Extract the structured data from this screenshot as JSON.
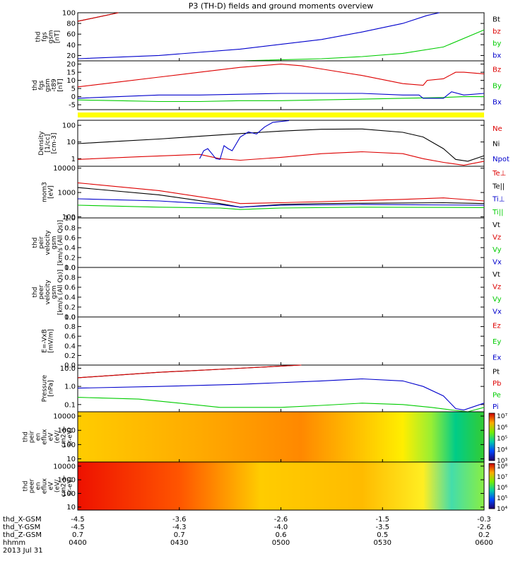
{
  "title": "P3 (TH-D) fields and ground moments overview",
  "colors": {
    "black": "#000000",
    "red": "#dd0000",
    "green": "#00cc00",
    "blue": "#0000cc",
    "yellow": "#ffff00"
  },
  "chart_data": [
    {
      "type": "line",
      "id": "fgs",
      "ylabel": [
        "thd",
        "fgs",
        "gsm",
        "[nT]"
      ],
      "ylim": [
        10,
        100
      ],
      "yticks": [
        {
          "v": 100,
          "t": "100"
        },
        {
          "v": 80,
          "t": "80"
        },
        {
          "v": 60,
          "t": "60"
        },
        {
          "v": 40,
          "t": "40"
        },
        {
          "v": 20,
          "t": "20"
        }
      ],
      "legend": [
        {
          "text": "Bt",
          "color": "black"
        },
        {
          "text": "bz",
          "color": "red"
        },
        {
          "text": "by",
          "color": "green"
        },
        {
          "text": "bx",
          "color": "blue"
        }
      ],
      "series": [
        {
          "color": "black",
          "x": [
            0,
            10
          ],
          "y": [
            84,
            100
          ]
        },
        {
          "color": "red",
          "x": [
            0,
            10
          ],
          "y": [
            84,
            100
          ]
        },
        {
          "color": "green",
          "x": [
            0,
            20,
            40,
            60,
            70,
            80,
            90,
            100
          ],
          "y": [
            4,
            6,
            9,
            14,
            18,
            24,
            36,
            68
          ]
        },
        {
          "color": "blue",
          "x": [
            0,
            20,
            40,
            60,
            70,
            80,
            86,
            89
          ],
          "y": [
            14,
            20,
            32,
            50,
            64,
            80,
            95,
            100
          ]
        }
      ]
    },
    {
      "type": "line",
      "id": "fgs_t89",
      "ylabel": [
        "thd",
        "fgs",
        "gsm",
        "-t89",
        "[nT]"
      ],
      "ylim": [
        -8,
        22
      ],
      "yticks": [
        {
          "v": 20,
          "t": "20"
        },
        {
          "v": 15,
          "t": "15"
        },
        {
          "v": 10,
          "t": "10"
        },
        {
          "v": 5,
          "t": "5"
        },
        {
          "v": 0,
          "t": "0"
        },
        {
          "v": -5,
          "t": "-5"
        }
      ],
      "legend": [
        {
          "text": "Bz",
          "color": "red"
        },
        {
          "text": "By",
          "color": "green"
        },
        {
          "text": "Bx",
          "color": "blue"
        }
      ],
      "series": [
        {
          "color": "red",
          "x": [
            0,
            10,
            20,
            30,
            40,
            50,
            55,
            60,
            70,
            80,
            85,
            86,
            90,
            93,
            95,
            100
          ],
          "y": [
            6,
            9,
            12,
            15,
            18,
            20,
            19,
            17,
            13,
            8,
            7,
            10,
            11,
            15,
            15,
            14
          ]
        },
        {
          "color": "green",
          "x": [
            0,
            10,
            20,
            30,
            40,
            50,
            60,
            70,
            80,
            90,
            95,
            100
          ],
          "y": [
            -2,
            -2.5,
            -3,
            -3,
            -2.5,
            -2.5,
            -2,
            -1.5,
            -1,
            -0.5,
            0,
            0
          ]
        },
        {
          "color": "blue",
          "x": [
            0,
            10,
            20,
            30,
            40,
            50,
            60,
            70,
            80,
            84,
            85,
            88,
            90,
            92,
            95,
            100
          ],
          "y": [
            -1,
            0,
            1,
            1,
            1.5,
            2,
            2,
            2,
            1,
            1,
            -1,
            -1,
            -1,
            3,
            1,
            2
          ]
        }
      ]
    },
    {
      "type": "log-line",
      "id": "density",
      "ylabel": [
        "Density",
        "[1/cc]",
        "[cm-3]"
      ],
      "ylim": [
        0.35,
        200
      ],
      "yticks": [
        {
          "v": 100,
          "t": "100"
        },
        {
          "v": 10,
          "t": "10"
        },
        {
          "v": 1,
          "t": "1"
        }
      ],
      "legend": [
        {
          "text": "Ne",
          "color": "red"
        },
        {
          "text": "Ni",
          "color": "black"
        },
        {
          "text": "Npot",
          "color": "blue"
        }
      ],
      "series": [
        {
          "color": "black",
          "x": [
            0,
            10,
            20,
            30,
            40,
            50,
            60,
            70,
            80,
            85,
            90,
            93,
            96,
            100
          ],
          "y": [
            8,
            11,
            15,
            22,
            32,
            45,
            58,
            60,
            38,
            20,
            4,
            0.9,
            0.7,
            1.5
          ]
        },
        {
          "color": "red",
          "x": [
            0,
            15,
            30,
            35,
            40,
            50,
            60,
            70,
            80,
            85,
            90,
            95,
            100
          ],
          "y": [
            0.9,
            1.3,
            1.8,
            1,
            0.8,
            1.2,
            2,
            2.6,
            2,
            1,
            0.6,
            0.4,
            0.7
          ]
        },
        {
          "color": "blue",
          "x": [
            30,
            31,
            32,
            33,
            34,
            35,
            36,
            37,
            38,
            40,
            42,
            44,
            46,
            48,
            50,
            52
          ],
          "y": [
            1,
            3,
            4,
            2,
            1,
            0.9,
            6,
            4,
            3,
            20,
            40,
            30,
            80,
            150,
            170,
            190
          ]
        }
      ]
    },
    {
      "type": "log-line",
      "id": "temp",
      "ylabel": [
        "mom3",
        "[eV]"
      ],
      "ylim": [
        90,
        12000
      ],
      "yticks": [
        {
          "v": 10000,
          "t": "10000"
        },
        {
          "v": 1000,
          "t": "1000"
        },
        {
          "v": 100,
          "t": "100"
        }
      ],
      "legend": [
        {
          "text": "Te⊥",
          "color": "red"
        },
        {
          "text": "Te||",
          "color": "black"
        },
        {
          "text": "Ti⊥",
          "color": "blue"
        },
        {
          "text": "Ti||",
          "color": "green"
        }
      ],
      "series": [
        {
          "color": "red",
          "x": [
            0,
            20,
            35,
            40,
            50,
            60,
            80,
            90,
            100
          ],
          "y": [
            2500,
            1200,
            500,
            350,
            380,
            420,
            520,
            600,
            450
          ]
        },
        {
          "color": "black",
          "x": [
            0,
            20,
            35,
            40,
            50,
            60,
            80,
            90,
            100
          ],
          "y": [
            1600,
            800,
            350,
            250,
            320,
            350,
            370,
            380,
            350
          ]
        },
        {
          "color": "blue",
          "x": [
            0,
            20,
            35,
            40,
            50,
            70,
            100
          ],
          "y": [
            550,
            450,
            320,
            250,
            300,
            320,
            300
          ]
        },
        {
          "color": "green",
          "x": [
            0,
            20,
            35,
            40,
            50,
            70,
            100
          ],
          "y": [
            300,
            250,
            230,
            200,
            230,
            250,
            240
          ]
        }
      ]
    },
    {
      "type": "line",
      "id": "vpeir",
      "ylabel": [
        "thd",
        "peir",
        "velocity",
        "gsm",
        "[km/s (All Qs)]"
      ],
      "ylim": [
        0,
        1
      ],
      "yticks": [
        {
          "v": 1,
          "t": "1.0"
        },
        {
          "v": 0.8,
          "t": "0.8"
        },
        {
          "v": 0.6,
          "t": "0.6"
        },
        {
          "v": 0.4,
          "t": "0.4"
        },
        {
          "v": 0.2,
          "t": "0.2"
        },
        {
          "v": 0,
          "t": "0.0"
        }
      ],
      "legend": [
        {
          "text": "Vt",
          "color": "black"
        },
        {
          "text": "Vz",
          "color": "red"
        },
        {
          "text": "Vy",
          "color": "green"
        },
        {
          "text": "Vx",
          "color": "blue"
        }
      ],
      "series": []
    },
    {
      "type": "line",
      "id": "vpeer",
      "ylabel": [
        "thd",
        "peer",
        "velocity",
        "gsm",
        "[km/s (All Qs)]"
      ],
      "ylim": [
        0,
        1
      ],
      "yticks": [
        {
          "v": 1,
          "t": "1.0"
        },
        {
          "v": 0.8,
          "t": "0.8"
        },
        {
          "v": 0.6,
          "t": "0.6"
        },
        {
          "v": 0.4,
          "t": "0.4"
        },
        {
          "v": 0.2,
          "t": "0.2"
        },
        {
          "v": 0,
          "t": "0.0"
        }
      ],
      "legend": [
        {
          "text": "Vt",
          "color": "black"
        },
        {
          "text": "Vz",
          "color": "red"
        },
        {
          "text": "Vy",
          "color": "green"
        },
        {
          "text": "Vx",
          "color": "blue"
        }
      ],
      "series": []
    },
    {
      "type": "line",
      "id": "efield",
      "ylabel": [
        "E=-VxB",
        "[mV/m]"
      ],
      "ylim": [
        0,
        1
      ],
      "yticks": [
        {
          "v": 1,
          "t": "1.0"
        },
        {
          "v": 0.8,
          "t": "0.8"
        },
        {
          "v": 0.6,
          "t": "0.6"
        },
        {
          "v": 0.4,
          "t": "0.4"
        },
        {
          "v": 0.2,
          "t": "0.2"
        },
        {
          "v": 0,
          "t": "0.0"
        }
      ],
      "legend": [
        {
          "text": "Ez",
          "color": "red"
        },
        {
          "text": "Ey",
          "color": "green"
        },
        {
          "text": "Ex",
          "color": "blue"
        }
      ],
      "series": []
    },
    {
      "type": "log-line",
      "id": "pressure",
      "ylabel": [
        "Pressure",
        "[nPa]"
      ],
      "ylim": [
        0.04,
        15
      ],
      "yticks": [
        {
          "v": 10,
          "t": "10.0"
        },
        {
          "v": 1,
          "t": "1.0"
        },
        {
          "v": 0.1,
          "t": "0.1"
        }
      ],
      "legend": [
        {
          "text": "Pt",
          "color": "black"
        },
        {
          "text": "Pb",
          "color": "red"
        },
        {
          "text": "Pe",
          "color": "green"
        },
        {
          "text": "Pi",
          "color": "blue"
        }
      ],
      "series": [
        {
          "color": "black",
          "x": [
            0,
            20,
            40,
            55
          ],
          "y": [
            3,
            6,
            10,
            15
          ]
        },
        {
          "color": "red",
          "x": [
            0,
            20,
            40,
            55
          ],
          "y": [
            3,
            6,
            10,
            15
          ]
        },
        {
          "color": "blue",
          "x": [
            0,
            20,
            40,
            60,
            70,
            80,
            85,
            90,
            93,
            95,
            100
          ],
          "y": [
            0.8,
            1,
            1.3,
            2,
            2.6,
            2,
            1,
            0.3,
            0.06,
            0.05,
            0.12
          ]
        },
        {
          "color": "green",
          "x": [
            0,
            15,
            25,
            35,
            50,
            60,
            70,
            80,
            87,
            92,
            96,
            100
          ],
          "y": [
            0.25,
            0.2,
            0.12,
            0.07,
            0.07,
            0.09,
            0.12,
            0.1,
            0.07,
            0.05,
            0.04,
            0.07
          ]
        }
      ]
    },
    {
      "type": "heatmap",
      "id": "peir_spec",
      "ylabel": [
        "thd",
        "peir",
        "en",
        "eflux",
        "eV",
        "(eV/",
        "cm2-s-",
        "sr-eV)"
      ],
      "yticks": [
        {
          "v": 10000,
          "t": "10000"
        },
        {
          "v": 1000,
          "t": "1000"
        },
        {
          "v": 100,
          "t": "100"
        },
        {
          "v": 10,
          "t": "10"
        }
      ],
      "ylim": [
        6,
        20000
      ],
      "colorbar_ticks": [
        "10⁷",
        "10⁶",
        "10⁵",
        "10⁴",
        "10³"
      ]
    },
    {
      "type": "heatmap",
      "id": "peer_spec",
      "ylabel": [
        "thd",
        "peer",
        "en",
        "eflux",
        "eV",
        "(eV/",
        "cm2-s-",
        "sr-eV)"
      ],
      "yticks": [
        {
          "v": 10000,
          "t": "10000"
        },
        {
          "v": 1000,
          "t": "1000"
        },
        {
          "v": 100,
          "t": "100"
        },
        {
          "v": 10,
          "t": "10"
        }
      ],
      "ylim": [
        6,
        20000
      ],
      "colorbar_ticks": [
        "10⁸",
        "10⁷",
        "10⁶",
        "10⁵",
        "10⁴"
      ]
    }
  ],
  "xaxis": {
    "rows": [
      {
        "label": "thd_X-GSM",
        "values": [
          "-4.5",
          "-3.6",
          "-2.6",
          "-1.5",
          "-0.3"
        ]
      },
      {
        "label": "thd_Y-GSM",
        "values": [
          "-4.5",
          "-4.3",
          "-4.0",
          "-3.5",
          "-2.6"
        ]
      },
      {
        "label": "thd_Z-GSM",
        "values": [
          "0.7",
          "0.7",
          "0.6",
          "0.5",
          "0.2"
        ]
      },
      {
        "label": "hhmm",
        "values": [
          "0400",
          "0430",
          "0500",
          "0530",
          "0600"
        ]
      }
    ],
    "date": "2013 Jul 31"
  }
}
